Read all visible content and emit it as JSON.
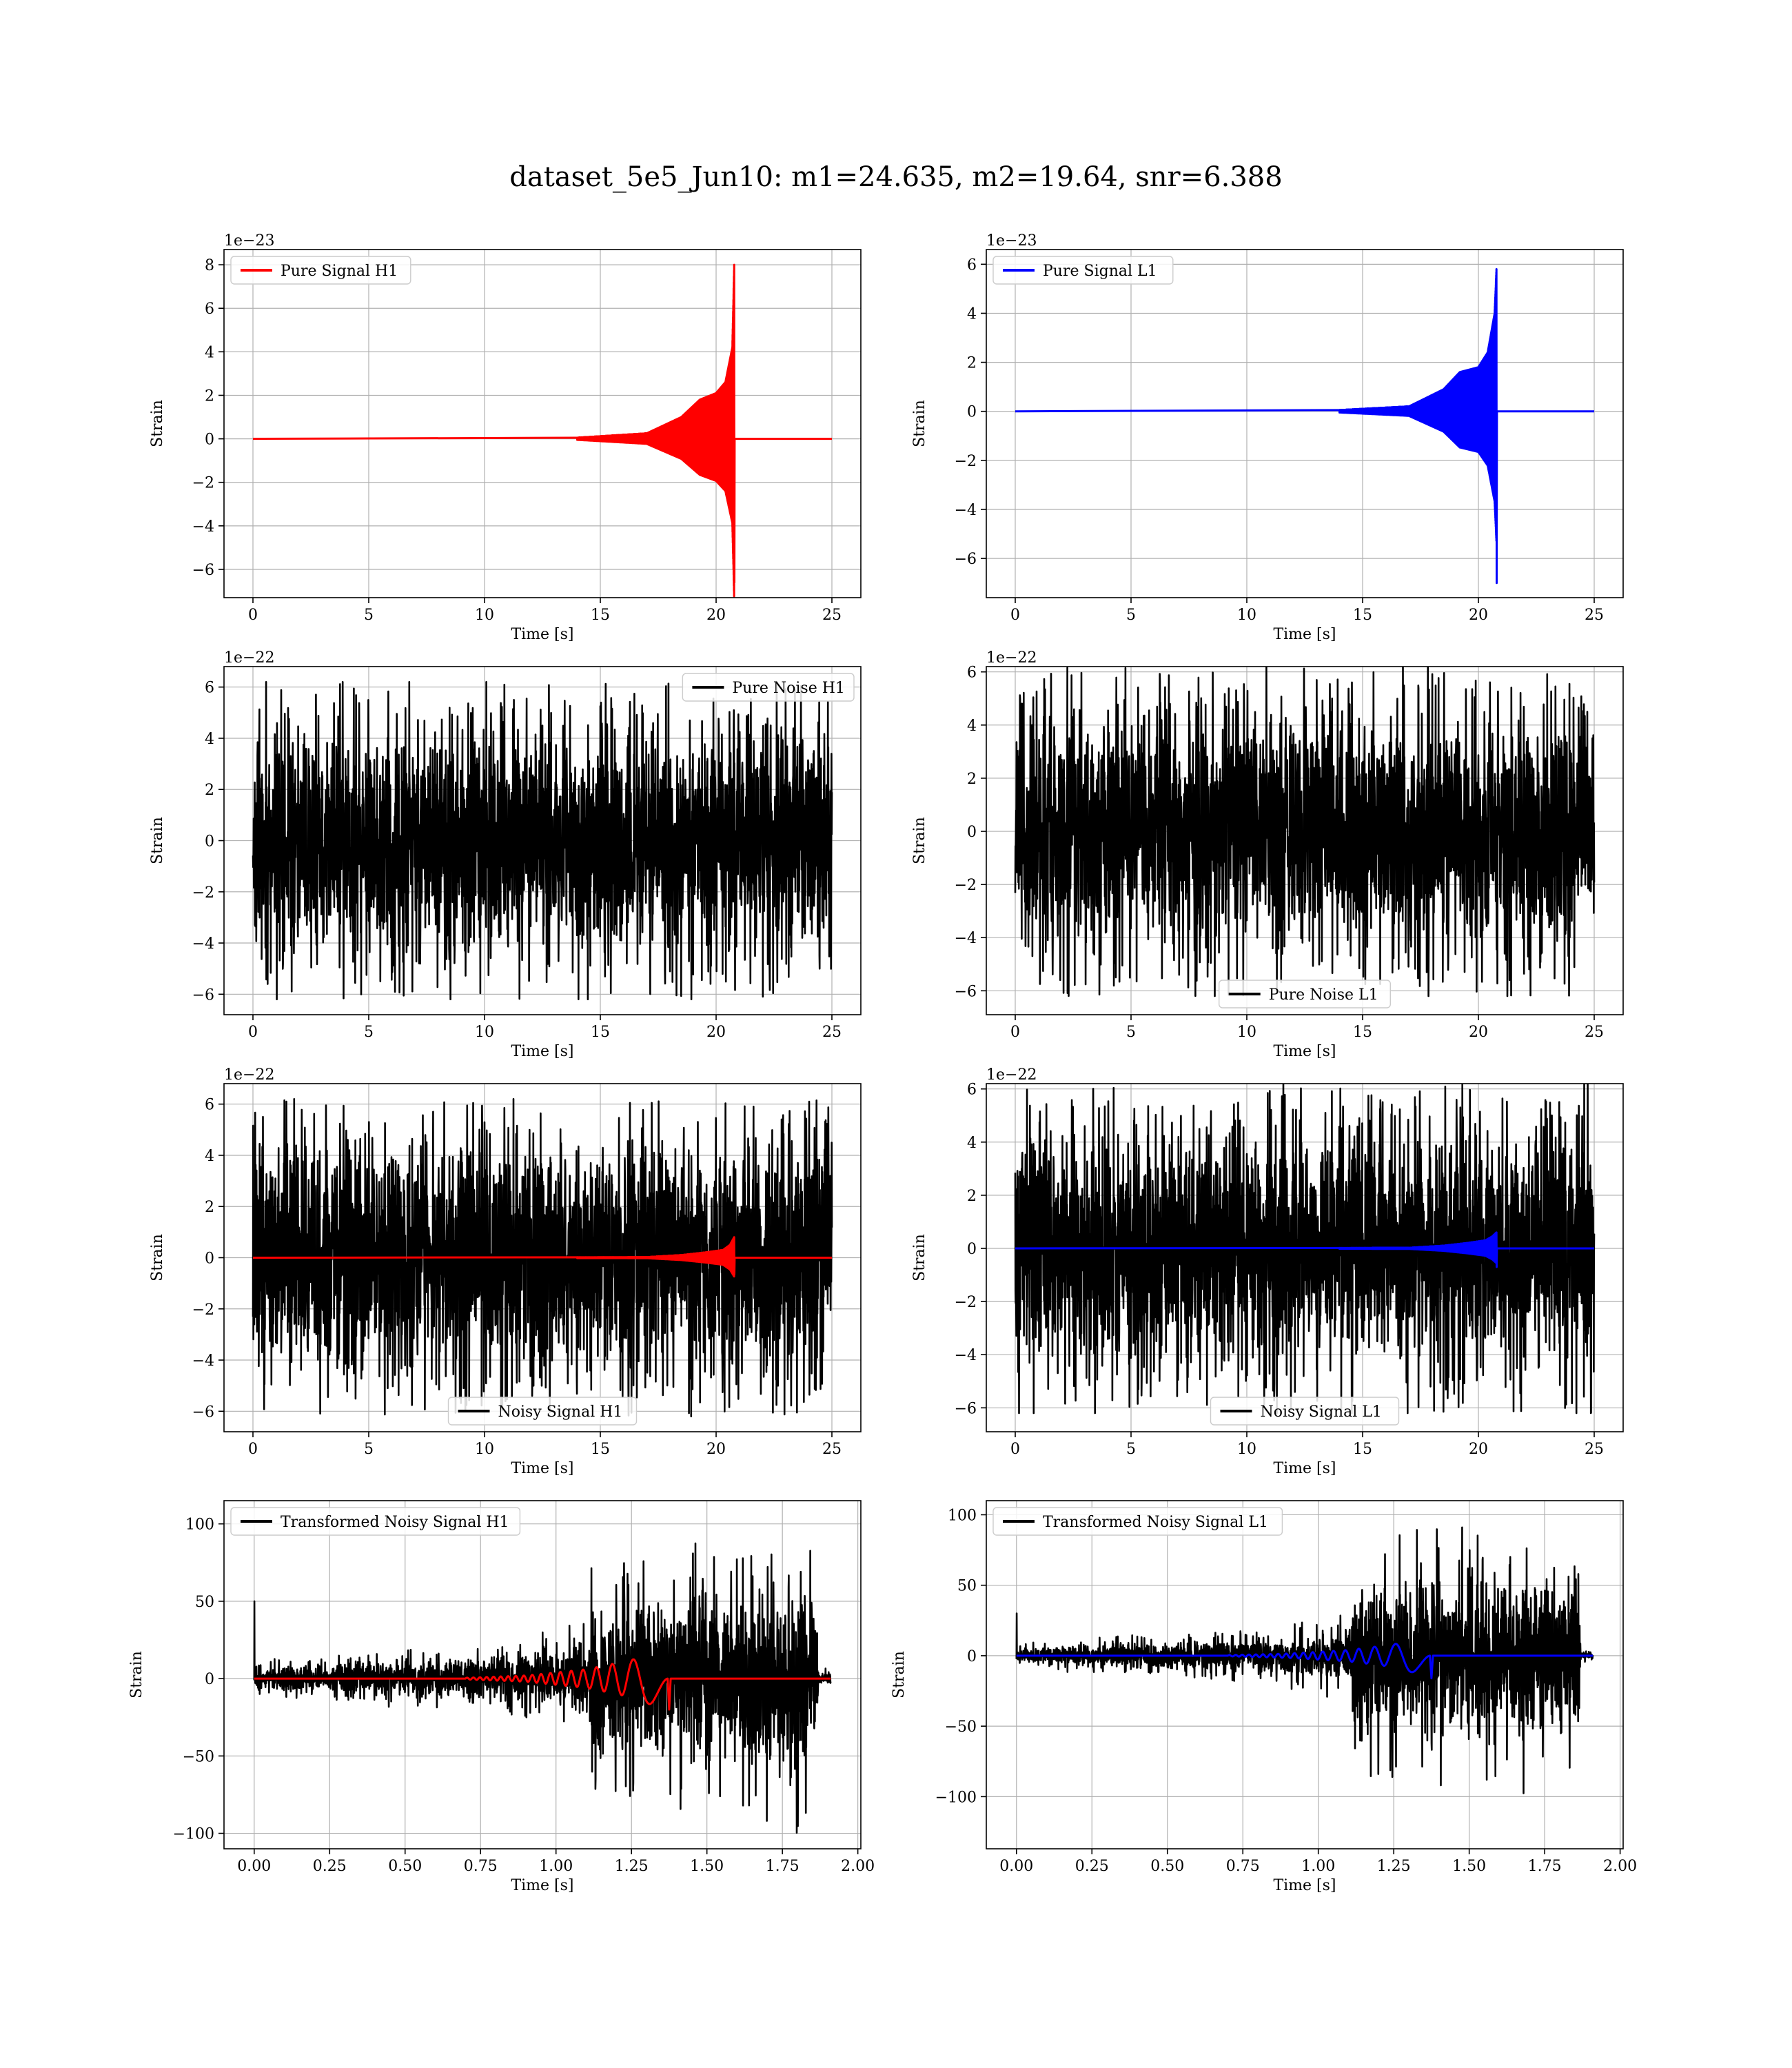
{
  "figure": {
    "title": "dataset_5e5_Jun10: m1=24.635, m2=19.64, snr=6.388"
  },
  "colors": {
    "h1_signal": "#ff0000",
    "l1_signal": "#0000ff",
    "noise": "#000000"
  },
  "chart_data": [
    {
      "id": "pure-signal-h1",
      "type": "line",
      "xlabel": "Time [s]",
      "ylabel": "Strain",
      "offset_text": "1e−23",
      "xlim": [
        -1.25,
        26.25
      ],
      "ylim": [
        -7.3,
        8.7
      ],
      "xticks": [
        0,
        5,
        10,
        15,
        20,
        25
      ],
      "xtick_labels": [
        "0",
        "5",
        "10",
        "15",
        "20",
        "25"
      ],
      "yticks": [
        -6,
        -4,
        -2,
        0,
        2,
        4,
        6,
        8
      ],
      "ytick_labels": [
        "−6",
        "−4",
        "−2",
        "0",
        "2",
        "4",
        "6",
        "8"
      ],
      "legend": "top-left",
      "grid": true,
      "series": [
        {
          "name": "Pure Signal H1",
          "kind": "chirp",
          "color": "#ff0000",
          "x_start": 0,
          "x_end": 25,
          "envelope": [
            [
              0,
              0
            ],
            [
              14,
              0.05
            ],
            [
              17,
              0.25
            ],
            [
              18.5,
              1.0
            ],
            [
              19.3,
              1.8
            ],
            [
              20.0,
              2.1
            ],
            [
              20.4,
              2.6
            ],
            [
              20.7,
              4.2
            ],
            [
              20.78,
              8.0
            ],
            [
              20.8,
              0
            ]
          ],
          "neg_peak": -6.6
        }
      ]
    },
    {
      "id": "pure-signal-l1",
      "type": "line",
      "xlabel": "Time [s]",
      "ylabel": "Strain",
      "offset_text": "1e−23",
      "xlim": [
        -1.25,
        26.25
      ],
      "ylim": [
        -7.6,
        6.6
      ],
      "xticks": [
        0,
        5,
        10,
        15,
        20,
        25
      ],
      "xtick_labels": [
        "0",
        "5",
        "10",
        "15",
        "20",
        "25"
      ],
      "yticks": [
        -6,
        -4,
        -2,
        0,
        2,
        4,
        6
      ],
      "ytick_labels": [
        "−6",
        "−4",
        "−2",
        "0",
        "2",
        "4",
        "6"
      ],
      "legend": "top-left",
      "grid": true,
      "series": [
        {
          "name": "Pure Signal L1",
          "kind": "chirp",
          "color": "#0000ff",
          "x_start": 0,
          "x_end": 25,
          "envelope": [
            [
              0,
              0
            ],
            [
              14,
              0.05
            ],
            [
              17,
              0.2
            ],
            [
              18.5,
              0.9
            ],
            [
              19.2,
              1.6
            ],
            [
              20.0,
              1.8
            ],
            [
              20.4,
              2.4
            ],
            [
              20.7,
              4.0
            ],
            [
              20.78,
              5.8
            ],
            [
              20.8,
              0
            ]
          ],
          "neg_peak": -7.0
        }
      ]
    },
    {
      "id": "pure-noise-h1",
      "type": "line",
      "xlabel": "Time [s]",
      "ylabel": "Strain",
      "offset_text": "1e−22",
      "xlim": [
        -1.25,
        26.25
      ],
      "ylim": [
        -6.8,
        6.8
      ],
      "xticks": [
        0,
        5,
        10,
        15,
        20,
        25
      ],
      "xtick_labels": [
        "0",
        "5",
        "10",
        "15",
        "20",
        "25"
      ],
      "yticks": [
        -6,
        -4,
        -2,
        0,
        2,
        4,
        6
      ],
      "ytick_labels": [
        "−6",
        "−4",
        "−2",
        "0",
        "2",
        "4",
        "6"
      ],
      "legend": "top-right",
      "grid": true,
      "series": [
        {
          "name": "Pure Noise H1",
          "kind": "noise",
          "color": "#000000",
          "x_start": 0,
          "x_end": 25,
          "noise_level": 2.2,
          "noise_peak": 6.2,
          "seed": 11
        }
      ]
    },
    {
      "id": "pure-noise-l1",
      "type": "line",
      "xlabel": "Time [s]",
      "ylabel": "Strain",
      "offset_text": "1e−22",
      "xlim": [
        -1.25,
        26.25
      ],
      "ylim": [
        -6.9,
        6.2
      ],
      "xticks": [
        0,
        5,
        10,
        15,
        20,
        25
      ],
      "xtick_labels": [
        "0",
        "5",
        "10",
        "15",
        "20",
        "25"
      ],
      "yticks": [
        -6,
        -4,
        -2,
        0,
        2,
        4,
        6
      ],
      "ytick_labels": [
        "−6",
        "−4",
        "−2",
        "0",
        "2",
        "4",
        "6"
      ],
      "legend": "bottom-center",
      "grid": true,
      "series": [
        {
          "name": "Pure Noise L1",
          "kind": "noise",
          "color": "#000000",
          "x_start": 0,
          "x_end": 25,
          "noise_level": 2.2,
          "noise_peak": 6.2,
          "seed": 23
        }
      ]
    },
    {
      "id": "noisy-signal-h1",
      "type": "line",
      "xlabel": "Time [s]",
      "ylabel": "Strain",
      "offset_text": "1e−22",
      "xlim": [
        -1.25,
        26.25
      ],
      "ylim": [
        -6.8,
        6.8
      ],
      "xticks": [
        0,
        5,
        10,
        15,
        20,
        25
      ],
      "xtick_labels": [
        "0",
        "5",
        "10",
        "15",
        "20",
        "25"
      ],
      "yticks": [
        -6,
        -4,
        -2,
        0,
        2,
        4,
        6
      ],
      "ytick_labels": [
        "−6",
        "−4",
        "−2",
        "0",
        "2",
        "4",
        "6"
      ],
      "legend": "bottom-center",
      "grid": true,
      "series": [
        {
          "name": "Noisy Signal H1",
          "kind": "noise",
          "color": "#000000",
          "x_start": 0,
          "x_end": 25,
          "noise_level": 2.2,
          "noise_peak": 6.2,
          "seed": 37
        },
        {
          "name": "",
          "kind": "chirp",
          "color": "#ff0000",
          "x_start": 0,
          "x_end": 25,
          "envelope": [
            [
              0,
              0
            ],
            [
              17,
              0.02
            ],
            [
              18.5,
              0.1
            ],
            [
              19.5,
              0.2
            ],
            [
              20.3,
              0.3
            ],
            [
              20.6,
              0.5
            ],
            [
              20.78,
              0.8
            ],
            [
              20.8,
              0
            ]
          ],
          "neg_peak": -0.65
        }
      ]
    },
    {
      "id": "noisy-signal-l1",
      "type": "line",
      "xlabel": "Time [s]",
      "ylabel": "Strain",
      "offset_text": "1e−22",
      "xlim": [
        -1.25,
        26.25
      ],
      "ylim": [
        -6.9,
        6.2
      ],
      "xticks": [
        0,
        5,
        10,
        15,
        20,
        25
      ],
      "xtick_labels": [
        "0",
        "5",
        "10",
        "15",
        "20",
        "25"
      ],
      "yticks": [
        -6,
        -4,
        -2,
        0,
        2,
        4,
        6
      ],
      "ytick_labels": [
        "−6",
        "−4",
        "−2",
        "0",
        "2",
        "4",
        "6"
      ],
      "legend": "bottom-center",
      "grid": true,
      "series": [
        {
          "name": "Noisy Signal L1",
          "kind": "noise",
          "color": "#000000",
          "x_start": 0,
          "x_end": 25,
          "noise_level": 2.2,
          "noise_peak": 6.2,
          "seed": 51
        },
        {
          "name": "",
          "kind": "chirp",
          "color": "#0000ff",
          "x_start": 0,
          "x_end": 25,
          "envelope": [
            [
              0,
              0
            ],
            [
              17,
              0.02
            ],
            [
              18.5,
              0.1
            ],
            [
              19.5,
              0.2
            ],
            [
              20.3,
              0.3
            ],
            [
              20.6,
              0.45
            ],
            [
              20.78,
              0.6
            ],
            [
              20.8,
              0
            ]
          ],
          "neg_peak": -0.7
        }
      ]
    },
    {
      "id": "transformed-noisy-signal-h1",
      "type": "line",
      "xlabel": "Time [s]",
      "ylabel": "Strain",
      "offset_text": "",
      "xlim": [
        -0.1,
        2.01
      ],
      "ylim": [
        -110,
        115
      ],
      "xticks": [
        0,
        0.25,
        0.5,
        0.75,
        1.0,
        1.25,
        1.5,
        1.75,
        2.0
      ],
      "xtick_labels": [
        "0.00",
        "0.25",
        "0.50",
        "0.75",
        "1.00",
        "1.25",
        "1.50",
        "1.75",
        "2.00"
      ],
      "yticks": [
        -100,
        -50,
        0,
        50,
        100
      ],
      "ytick_labels": [
        "−100",
        "−50",
        "0",
        "50",
        "100"
      ],
      "legend": "top-left",
      "grid": true,
      "series": [
        {
          "name": "Transformed Noisy Signal H1",
          "kind": "whitened",
          "color": "#000000",
          "x_start": 0,
          "x_end": 1.91,
          "envelope": [
            [
              0,
              8
            ],
            [
              0.4,
              12
            ],
            [
              0.8,
              15
            ],
            [
              1.0,
              20
            ],
            [
              1.1,
              25
            ],
            [
              1.12,
              60
            ],
            [
              1.5,
              62
            ],
            [
              1.86,
              65
            ],
            [
              1.87,
              5
            ],
            [
              1.91,
              5
            ]
          ],
          "spike_at_start": 50,
          "seed": 71
        },
        {
          "name": "",
          "kind": "chirp",
          "color": "#ff0000",
          "x_start": 0,
          "x_end": 1.91,
          "envelope": [
            [
              0,
              0
            ],
            [
              0.7,
              0.5
            ],
            [
              0.9,
              2
            ],
            [
              1.1,
              6
            ],
            [
              1.25,
              12
            ],
            [
              1.33,
              18
            ],
            [
              1.37,
              23
            ],
            [
              1.38,
              0
            ]
          ],
          "neg_peak": -20,
          "cycles": 18
        }
      ]
    },
    {
      "id": "transformed-noisy-signal-l1",
      "type": "line",
      "xlabel": "Time [s]",
      "ylabel": "Strain",
      "offset_text": "",
      "xlim": [
        -0.1,
        2.01
      ],
      "ylim": [
        -137,
        110
      ],
      "xticks": [
        0,
        0.25,
        0.5,
        0.75,
        1.0,
        1.25,
        1.5,
        1.75,
        2.0
      ],
      "xtick_labels": [
        "0.00",
        "0.25",
        "0.50",
        "0.75",
        "1.00",
        "1.25",
        "1.50",
        "1.75",
        "2.00"
      ],
      "yticks": [
        -100,
        -50,
        0,
        50,
        100
      ],
      "ytick_labels": [
        "−100",
        "−50",
        "0",
        "50",
        "100"
      ],
      "legend": "top-left",
      "grid": true,
      "series": [
        {
          "name": "Transformed Noisy Signal L1",
          "kind": "whitened",
          "color": "#000000",
          "x_start": 0,
          "x_end": 1.91,
          "envelope": [
            [
              0,
              6
            ],
            [
              0.4,
              10
            ],
            [
              0.8,
              12
            ],
            [
              1.0,
              18
            ],
            [
              1.1,
              22
            ],
            [
              1.12,
              55
            ],
            [
              1.5,
              62
            ],
            [
              1.86,
              65
            ],
            [
              1.87,
              3
            ],
            [
              1.91,
              3
            ]
          ],
          "spike_at_start": 30,
          "seed": 89
        },
        {
          "name": "",
          "kind": "chirp",
          "color": "#0000ff",
          "x_start": 0,
          "x_end": 1.91,
          "envelope": [
            [
              0,
              0
            ],
            [
              0.7,
              0.4
            ],
            [
              0.9,
              1.5
            ],
            [
              1.1,
              4
            ],
            [
              1.25,
              8
            ],
            [
              1.33,
              13
            ],
            [
              1.37,
              18
            ],
            [
              1.38,
              0
            ]
          ],
          "neg_peak": -16,
          "cycles": 18
        }
      ]
    }
  ]
}
